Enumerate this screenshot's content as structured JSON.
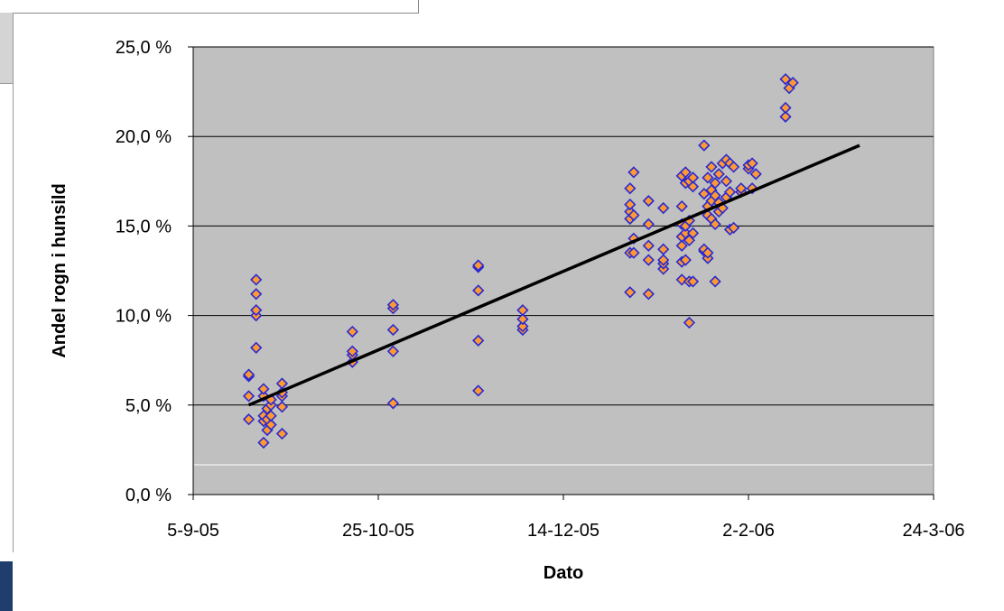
{
  "chart_data": {
    "type": "scatter",
    "title": "",
    "xlabel": "Dato",
    "ylabel": "Andel rogn i hunsild",
    "x_axis": {
      "type": "date",
      "min": "2005-09-05",
      "max": "2006-03-24",
      "tick_labels": [
        "5-9-05",
        "25-10-05",
        "14-12-05",
        "2-2-06",
        "24-3-06"
      ],
      "tick_dates": [
        "2005-09-05",
        "2005-10-25",
        "2005-12-14",
        "2006-02-02",
        "2006-03-24"
      ]
    },
    "y_axis": {
      "min": 0,
      "max": 25,
      "unit": "%",
      "tick_values": [
        0,
        5,
        10,
        15,
        20,
        25
      ],
      "tick_labels": [
        "0,0 %",
        "5,0 %",
        "10,0 %",
        "15,0 %",
        "20,0 %",
        "25,0 %"
      ]
    },
    "grid": "horizontal",
    "legend": "none",
    "colors": {
      "plot_background": "#c0c0c0",
      "marker_fill": "#ff9933",
      "marker_edge": "#2a2ad0",
      "trendline": "#000000",
      "gridline": "#000000"
    },
    "series": [
      {
        "marker": "diamond",
        "points": [
          [
            "2005-09-20",
            4.2
          ],
          [
            "2005-09-20",
            5.5
          ],
          [
            "2005-09-20",
            6.6
          ],
          [
            "2005-09-20",
            6.7
          ],
          [
            "2005-09-22",
            8.2
          ],
          [
            "2005-09-22",
            10.0
          ],
          [
            "2005-09-22",
            10.3
          ],
          [
            "2005-09-22",
            11.2
          ],
          [
            "2005-09-22",
            12.0
          ],
          [
            "2005-09-24",
            2.9
          ],
          [
            "2005-09-24",
            4.1
          ],
          [
            "2005-09-24",
            4.4
          ],
          [
            "2005-09-24",
            5.5
          ],
          [
            "2005-09-24",
            5.9
          ],
          [
            "2005-09-25",
            3.6
          ],
          [
            "2005-09-25",
            4.2
          ],
          [
            "2005-09-25",
            4.8
          ],
          [
            "2005-09-26",
            3.9
          ],
          [
            "2005-09-26",
            4.4
          ],
          [
            "2005-09-26",
            5.0
          ],
          [
            "2005-09-26",
            5.3
          ],
          [
            "2005-09-29",
            3.4
          ],
          [
            "2005-09-29",
            4.9
          ],
          [
            "2005-09-29",
            5.5
          ],
          [
            "2005-09-29",
            5.7
          ],
          [
            "2005-09-29",
            6.2
          ],
          [
            "2005-10-18",
            7.4
          ],
          [
            "2005-10-18",
            7.8
          ],
          [
            "2005-10-18",
            8.0
          ],
          [
            "2005-10-18",
            9.1
          ],
          [
            "2005-10-29",
            5.1
          ],
          [
            "2005-10-29",
            8.0
          ],
          [
            "2005-10-29",
            9.2
          ],
          [
            "2005-10-29",
            10.4
          ],
          [
            "2005-10-29",
            10.6
          ],
          [
            "2005-11-21",
            5.8
          ],
          [
            "2005-11-21",
            8.6
          ],
          [
            "2005-11-21",
            11.4
          ],
          [
            "2005-11-21",
            12.7
          ],
          [
            "2005-11-21",
            12.8
          ],
          [
            "2005-12-03",
            9.2
          ],
          [
            "2005-12-03",
            9.4
          ],
          [
            "2005-12-03",
            9.8
          ],
          [
            "2005-12-03",
            10.3
          ],
          [
            "2006-01-01",
            11.3
          ],
          [
            "2006-01-01",
            13.5
          ],
          [
            "2006-01-01",
            15.4
          ],
          [
            "2006-01-01",
            15.8
          ],
          [
            "2006-01-01",
            16.2
          ],
          [
            "2006-01-01",
            17.1
          ],
          [
            "2006-01-02",
            13.5
          ],
          [
            "2006-01-02",
            14.3
          ],
          [
            "2006-01-02",
            15.6
          ],
          [
            "2006-01-02",
            18.0
          ],
          [
            "2006-01-06",
            11.2
          ],
          [
            "2006-01-06",
            13.1
          ],
          [
            "2006-01-06",
            13.9
          ],
          [
            "2006-01-06",
            15.1
          ],
          [
            "2006-01-06",
            16.4
          ],
          [
            "2006-01-10",
            12.6
          ],
          [
            "2006-01-10",
            12.9
          ],
          [
            "2006-01-10",
            13.1
          ],
          [
            "2006-01-10",
            13.7
          ],
          [
            "2006-01-10",
            16.0
          ],
          [
            "2006-01-15",
            12.0
          ],
          [
            "2006-01-15",
            13.0
          ],
          [
            "2006-01-15",
            13.9
          ],
          [
            "2006-01-15",
            14.4
          ],
          [
            "2006-01-15",
            15.1
          ],
          [
            "2006-01-15",
            16.1
          ],
          [
            "2006-01-15",
            17.8
          ],
          [
            "2006-01-16",
            13.1
          ],
          [
            "2006-01-16",
            14.6
          ],
          [
            "2006-01-16",
            15.0
          ],
          [
            "2006-01-16",
            17.4
          ],
          [
            "2006-01-16",
            18.0
          ],
          [
            "2006-01-17",
            9.6
          ],
          [
            "2006-01-17",
            11.9
          ],
          [
            "2006-01-17",
            14.2
          ],
          [
            "2006-01-17",
            15.3
          ],
          [
            "2006-01-17",
            17.5
          ],
          [
            "2006-01-18",
            11.9
          ],
          [
            "2006-01-18",
            14.6
          ],
          [
            "2006-01-18",
            17.2
          ],
          [
            "2006-01-18",
            17.7
          ],
          [
            "2006-01-21",
            13.6
          ],
          [
            "2006-01-21",
            13.7
          ],
          [
            "2006-01-21",
            16.8
          ],
          [
            "2006-01-21",
            19.5
          ],
          [
            "2006-01-22",
            13.2
          ],
          [
            "2006-01-22",
            13.5
          ],
          [
            "2006-01-22",
            15.6
          ],
          [
            "2006-01-22",
            16.1
          ],
          [
            "2006-01-22",
            17.7
          ],
          [
            "2006-01-23",
            15.4
          ],
          [
            "2006-01-23",
            16.4
          ],
          [
            "2006-01-23",
            17.0
          ],
          [
            "2006-01-23",
            18.3
          ],
          [
            "2006-01-24",
            11.9
          ],
          [
            "2006-01-24",
            15.1
          ],
          [
            "2006-01-24",
            16.7
          ],
          [
            "2006-01-24",
            17.4
          ],
          [
            "2006-01-25",
            15.8
          ],
          [
            "2006-01-25",
            16.3
          ],
          [
            "2006-01-25",
            17.9
          ],
          [
            "2006-01-26",
            16.0
          ],
          [
            "2006-01-26",
            18.5
          ],
          [
            "2006-01-27",
            16.6
          ],
          [
            "2006-01-27",
            17.5
          ],
          [
            "2006-01-27",
            18.7
          ],
          [
            "2006-01-28",
            14.8
          ],
          [
            "2006-01-28",
            16.9
          ],
          [
            "2006-01-28",
            18.5
          ],
          [
            "2006-01-29",
            14.9
          ],
          [
            "2006-01-29",
            18.3
          ],
          [
            "2006-01-31",
            16.9
          ],
          [
            "2006-01-31",
            17.1
          ],
          [
            "2006-02-02",
            18.2
          ],
          [
            "2006-02-02",
            18.4
          ],
          [
            "2006-02-03",
            17.1
          ],
          [
            "2006-02-03",
            18.5
          ],
          [
            "2006-02-04",
            17.9
          ],
          [
            "2006-02-12",
            21.1
          ],
          [
            "2006-02-12",
            21.6
          ],
          [
            "2006-02-12",
            23.2
          ],
          [
            "2006-02-13",
            22.7
          ],
          [
            "2006-02-14",
            23.0
          ]
        ]
      }
    ],
    "trendline": {
      "type": "linear",
      "start": [
        "2005-09-20",
        5.0
      ],
      "end": [
        "2006-03-04",
        19.5
      ]
    }
  }
}
